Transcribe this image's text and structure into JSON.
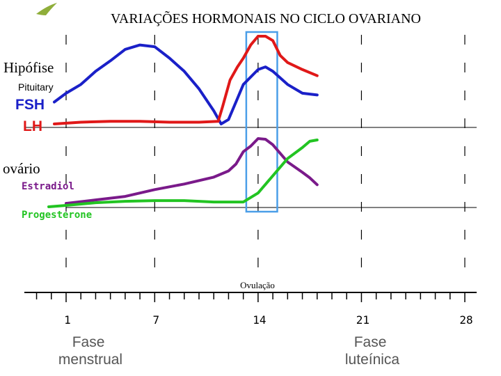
{
  "chart_data": {
    "type": "line",
    "title": "VARIAÇÕES HORMONAIS NO CICLO OVARIANO",
    "x_ticks": [
      1,
      7,
      14,
      21,
      28
    ],
    "x_range": [
      1,
      28
    ],
    "annotations": {
      "ovulation": "Ovulação",
      "pituitary_pt": "Hipófise",
      "pituitary_en": "Pituitary",
      "ovary": "ovário",
      "phase_menstrual": "Fase menstrual",
      "phase_luteal": "Fase luteínica"
    },
    "ovulation_window": [
      13.2,
      15.3
    ],
    "panels": [
      {
        "name": "pituitary",
        "series": [
          {
            "name": "FSH",
            "color": "#1a20c8",
            "points": [
              [
                0,
                0.25
              ],
              [
                1,
                0.35
              ],
              [
                2,
                0.45
              ],
              [
                3,
                0.6
              ],
              [
                4,
                0.72
              ],
              [
                5,
                0.85
              ],
              [
                6,
                0.9
              ],
              [
                7,
                0.88
              ],
              [
                8,
                0.75
              ],
              [
                9,
                0.6
              ],
              [
                10,
                0.4
              ],
              [
                11,
                0.15
              ],
              [
                11.5,
                0.0
              ],
              [
                12,
                0.05
              ],
              [
                12.5,
                0.25
              ],
              [
                13,
                0.45
              ],
              [
                14,
                0.62
              ],
              [
                14.5,
                0.65
              ],
              [
                15,
                0.6
              ],
              [
                16,
                0.45
              ],
              [
                17,
                0.35
              ],
              [
                18,
                0.33
              ]
            ]
          },
          {
            "name": "LH",
            "color": "#e01818",
            "points": [
              [
                0,
                0.0
              ],
              [
                2,
                0.02
              ],
              [
                4,
                0.03
              ],
              [
                6,
                0.03
              ],
              [
                8,
                0.02
              ],
              [
                10,
                0.02
              ],
              [
                11.3,
                0.03
              ],
              [
                11.6,
                0.2
              ],
              [
                12.1,
                0.5
              ],
              [
                12.6,
                0.65
              ],
              [
                13,
                0.75
              ],
              [
                13.5,
                0.9
              ],
              [
                14,
                1.0
              ],
              [
                14.5,
                1.0
              ],
              [
                15,
                0.95
              ],
              [
                15.5,
                0.78
              ],
              [
                16,
                0.7
              ],
              [
                17,
                0.62
              ],
              [
                18,
                0.55
              ]
            ]
          }
        ]
      },
      {
        "name": "ovary",
        "series": [
          {
            "name": "Estradiol",
            "color": "#7a1a8a",
            "points": [
              [
                1,
                0.05
              ],
              [
                3,
                0.1
              ],
              [
                5,
                0.15
              ],
              [
                7,
                0.25
              ],
              [
                9,
                0.33
              ],
              [
                11,
                0.43
              ],
              [
                12,
                0.52
              ],
              [
                12.5,
                0.62
              ],
              [
                13,
                0.8
              ],
              [
                13.5,
                0.88
              ],
              [
                14,
                0.99
              ],
              [
                14.5,
                0.98
              ],
              [
                15,
                0.9
              ],
              [
                16,
                0.65
              ],
              [
                17,
                0.5
              ],
              [
                17.5,
                0.42
              ],
              [
                18,
                0.32
              ]
            ]
          },
          {
            "name": "Progesterone",
            "color": "#22c422",
            "points": [
              [
                0,
                0.0
              ],
              [
                1,
                0.02
              ],
              [
                3,
                0.06
              ],
              [
                5,
                0.08
              ],
              [
                7,
                0.09
              ],
              [
                9,
                0.09
              ],
              [
                11,
                0.07
              ],
              [
                12,
                0.07
              ],
              [
                13,
                0.07
              ],
              [
                14,
                0.2
              ],
              [
                15,
                0.45
              ],
              [
                16,
                0.7
              ],
              [
                17,
                0.86
              ],
              [
                17.5,
                0.95
              ],
              [
                18,
                0.97
              ]
            ]
          }
        ]
      }
    ]
  }
}
